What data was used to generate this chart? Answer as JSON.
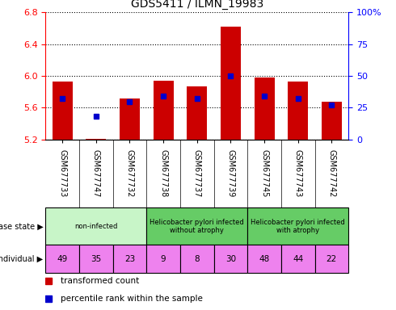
{
  "title": "GDS5411 / ILMN_19983",
  "samples": [
    "GSM677733",
    "GSM677747",
    "GSM677732",
    "GSM677738",
    "GSM677737",
    "GSM677739",
    "GSM677745",
    "GSM677743",
    "GSM677742"
  ],
  "transformed_count": [
    5.93,
    5.21,
    5.72,
    5.94,
    5.87,
    6.62,
    5.98,
    5.93,
    5.68
  ],
  "percentile_rank": [
    32,
    18,
    30,
    34,
    32,
    50,
    34,
    32,
    27
  ],
  "ylim_left": [
    5.2,
    6.8
  ],
  "ylim_right": [
    0,
    100
  ],
  "yticks_left": [
    5.2,
    5.6,
    6.0,
    6.4,
    6.8
  ],
  "yticks_right": [
    0,
    25,
    50,
    75,
    100
  ],
  "disease_groups": [
    {
      "label": "non-infected",
      "start": 0,
      "end": 3,
      "color": "#c8f5c8"
    },
    {
      "label": "Helicobacter pylori infected\nwithout atrophy",
      "start": 3,
      "end": 6,
      "color": "#66cc66"
    },
    {
      "label": "Helicobacter pylori infected\nwith atrophy",
      "start": 6,
      "end": 9,
      "color": "#66cc66"
    }
  ],
  "individual": [
    49,
    35,
    23,
    9,
    8,
    30,
    48,
    44,
    22
  ],
  "bar_color": "#cc0000",
  "dot_color": "#0000cc",
  "bar_bottom": 5.2,
  "legend_items": [
    {
      "label": "transformed count",
      "color": "#cc0000"
    },
    {
      "label": "percentile rank within the sample",
      "color": "#0000cc"
    }
  ],
  "xtick_bg": "#d0d0d0",
  "individual_bg": "#ee82ee"
}
